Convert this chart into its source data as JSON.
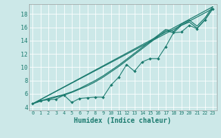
{
  "title": "",
  "xlabel": "Humidex (Indice chaleur)",
  "ylabel": "",
  "bg_color": "#cce8e8",
  "grid_color": "#b8d8d8",
  "line_color": "#1a7a6e",
  "xlim": [
    -0.5,
    23.5
  ],
  "ylim": [
    3.5,
    19.5
  ],
  "xticks": [
    0,
    1,
    2,
    3,
    4,
    5,
    6,
    7,
    8,
    9,
    10,
    11,
    12,
    13,
    14,
    15,
    16,
    17,
    18,
    19,
    20,
    21,
    22,
    23
  ],
  "yticks": [
    4,
    6,
    8,
    10,
    12,
    14,
    16,
    18
  ],
  "straight_line1": [
    [
      0,
      4.5
    ],
    [
      23,
      18.8
    ]
  ],
  "straight_line2": [
    [
      0,
      4.5
    ],
    [
      23,
      19.1
    ]
  ],
  "smooth_line1": [
    [
      0,
      4.5
    ],
    [
      1,
      4.9
    ],
    [
      2,
      5.2
    ],
    [
      3,
      5.5
    ],
    [
      4,
      5.8
    ],
    [
      5,
      6.2
    ],
    [
      6,
      6.7
    ],
    [
      7,
      7.2
    ],
    [
      8,
      7.8
    ],
    [
      9,
      8.5
    ],
    [
      10,
      9.3
    ],
    [
      11,
      10.1
    ],
    [
      12,
      11.0
    ],
    [
      13,
      11.9
    ],
    [
      14,
      12.8
    ],
    [
      15,
      13.7
    ],
    [
      16,
      14.6
    ],
    [
      17,
      15.5
    ],
    [
      18,
      15.2
    ],
    [
      19,
      16.3
    ],
    [
      20,
      16.8
    ],
    [
      21,
      15.9
    ],
    [
      22,
      17.1
    ],
    [
      23,
      18.8
    ]
  ],
  "smooth_line2": [
    [
      0,
      4.5
    ],
    [
      1,
      4.9
    ],
    [
      2,
      5.3
    ],
    [
      3,
      5.6
    ],
    [
      4,
      5.9
    ],
    [
      5,
      6.3
    ],
    [
      6,
      6.8
    ],
    [
      7,
      7.4
    ],
    [
      8,
      8.0
    ],
    [
      9,
      8.7
    ],
    [
      10,
      9.5
    ],
    [
      11,
      10.3
    ],
    [
      12,
      11.2
    ],
    [
      13,
      12.1
    ],
    [
      14,
      13.0
    ],
    [
      15,
      13.9
    ],
    [
      16,
      14.8
    ],
    [
      17,
      15.7
    ],
    [
      18,
      15.4
    ],
    [
      19,
      16.5
    ],
    [
      20,
      17.1
    ],
    [
      21,
      16.2
    ],
    [
      22,
      17.4
    ],
    [
      23,
      19.1
    ]
  ],
  "marker_line": [
    [
      0,
      4.5
    ],
    [
      1,
      5.0
    ],
    [
      2,
      5.1
    ],
    [
      3,
      5.2
    ],
    [
      4,
      5.8
    ],
    [
      5,
      4.7
    ],
    [
      6,
      5.3
    ],
    [
      7,
      5.4
    ],
    [
      8,
      5.5
    ],
    [
      9,
      5.5
    ],
    [
      10,
      7.3
    ],
    [
      11,
      8.5
    ],
    [
      12,
      10.4
    ],
    [
      13,
      9.4
    ],
    [
      14,
      10.8
    ],
    [
      15,
      11.3
    ],
    [
      16,
      11.3
    ],
    [
      17,
      13.1
    ],
    [
      18,
      15.2
    ],
    [
      19,
      15.3
    ],
    [
      20,
      16.3
    ],
    [
      21,
      15.8
    ],
    [
      22,
      17.1
    ],
    [
      23,
      18.8
    ]
  ]
}
